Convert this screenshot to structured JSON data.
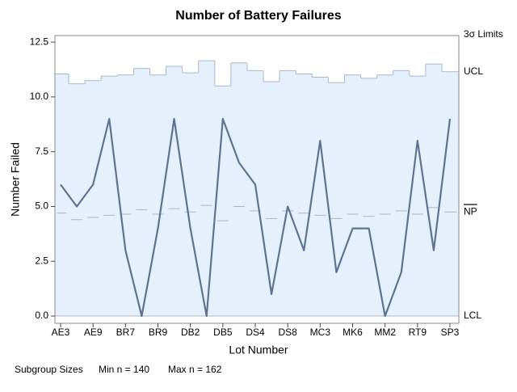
{
  "chart_data": {
    "type": "control",
    "title": "Number of Battery Failures",
    "x_label": "Lot Number",
    "y_label": "Number Failed",
    "categories": [
      "AE3",
      null,
      "AE9",
      null,
      "BR7",
      null,
      "BR9",
      null,
      "DB2",
      null,
      "DB5",
      null,
      "DS4",
      null,
      "DS8",
      null,
      "MC3",
      null,
      "MK6",
      null,
      "MM2",
      null,
      "RT9",
      null,
      "SP3"
    ],
    "values": [
      6,
      5,
      6,
      9,
      3,
      0,
      4,
      9,
      4,
      0,
      9,
      7,
      6,
      1,
      5,
      3,
      8,
      2,
      4,
      4,
      0,
      2,
      8,
      3,
      9
    ],
    "ucl": [
      11.05,
      10.6,
      10.75,
      10.95,
      11.0,
      11.3,
      11.0,
      11.4,
      11.1,
      11.65,
      10.5,
      11.55,
      11.2,
      10.7,
      11.2,
      11.05,
      10.9,
      10.65,
      11.0,
      10.85,
      11.0,
      11.2,
      10.95,
      11.5,
      11.15
    ],
    "center": [
      4.7,
      4.4,
      4.5,
      4.6,
      4.65,
      4.85,
      4.65,
      4.9,
      4.75,
      5.05,
      4.35,
      5.0,
      4.8,
      4.45,
      4.8,
      4.7,
      4.6,
      4.45,
      4.65,
      4.55,
      4.65,
      4.8,
      4.65,
      4.95,
      4.75
    ],
    "lcl": [
      0,
      0,
      0,
      0,
      0,
      0,
      0,
      0,
      0,
      0,
      0,
      0,
      0,
      0,
      0,
      0,
      0,
      0,
      0,
      0,
      0,
      0,
      0,
      0,
      0
    ],
    "limits_label": "3σ Limits",
    "ucl_label": "UCL",
    "center_label": "NP",
    "lcl_label": "LCL",
    "subgroup_label": "Subgroup Sizes",
    "min_n_label": "Min n = 140",
    "max_n_label": "Max n = 162",
    "ylim": [
      -0.33,
      12.8
    ],
    "yticks": [
      {
        "value": 0,
        "label": "0.0"
      },
      2.5,
      {
        "value": 5,
        "label": "5.0"
      },
      7.5,
      {
        "value": 10,
        "label": "10.0"
      },
      12.5
    ],
    "color": "#5c7491",
    "limit_color": "#a8b8cc",
    "fill_color": "#e6f0fc",
    "center_color": "#b4b4b4"
  }
}
